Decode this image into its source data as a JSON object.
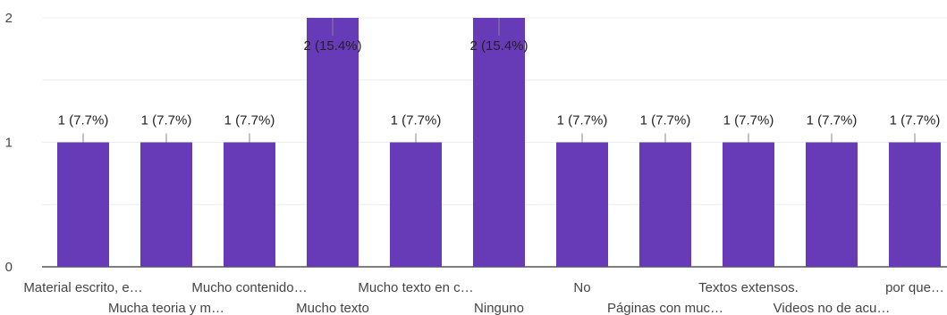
{
  "chart_data": {
    "type": "bar",
    "categories": [
      "Material escrito, e…",
      "Mucha teoria y m…",
      "Mucho contenido…",
      "Mucho texto",
      "Mucho texto en c…",
      "Ninguno",
      "No",
      "Páginas con muc…",
      "Textos extensos.",
      "Videos no de acu…",
      "por que…"
    ],
    "values": [
      1,
      1,
      1,
      2,
      1,
      2,
      1,
      1,
      1,
      1,
      1
    ],
    "data_labels": [
      "1 (7.7%)",
      "1 (7.7%)",
      "1 (7.7%)",
      "2 (15.4%)",
      "1 (7.7%)",
      "2 (15.4%)",
      "1 (7.7%)",
      "1 (7.7%)",
      "1 (7.7%)",
      "1 (7.7%)",
      "1 (7.7%)"
    ],
    "y_ticks": [
      "0",
      "1",
      "2"
    ],
    "ylim": [
      0,
      2
    ],
    "grid": true,
    "bar_color": "#673ab7",
    "label_color": "#222222",
    "tick_color": "#444444",
    "grid_color": "#ececec"
  }
}
